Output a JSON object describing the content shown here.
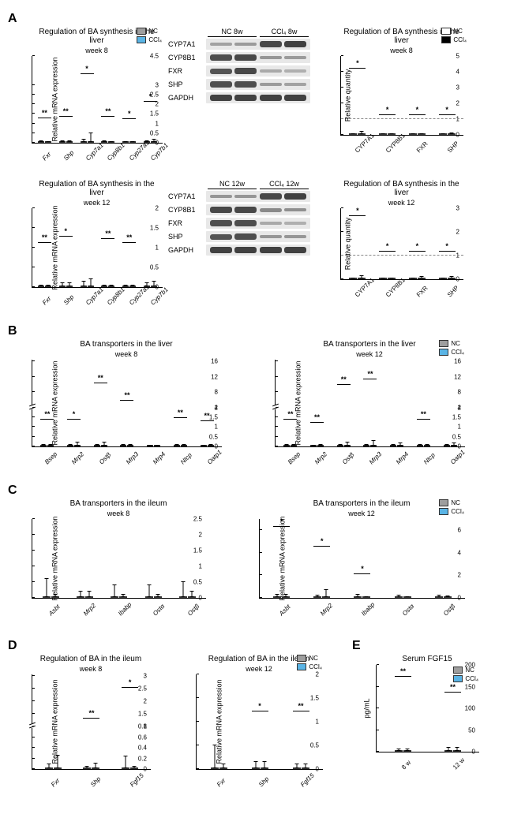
{
  "colors": {
    "nc_gray": "#9e9e9e",
    "ccl4_blue": "#5ab4e5",
    "nc_white": "#ffffff",
    "ccl4_black": "#000000",
    "text": "#000000",
    "axis": "#000000"
  },
  "fonts": {
    "title_pt": 10,
    "axis_pt": 9,
    "tick_pt": 8
  },
  "legend_labels": {
    "nc": "NC",
    "ccl4": "CCl₄"
  },
  "panelA": {
    "week8": {
      "mrna": {
        "type": "bar",
        "title": "Regulation of BA synthesis in the liver",
        "subtitle": "week 8",
        "ylabel": "Relative mRNA expression",
        "ylim": [
          0,
          4.5
        ],
        "yticks": [
          0,
          0.5,
          1.0,
          1.5,
          2.0,
          2.5,
          3.0,
          4.5
        ],
        "genes": [
          "Fxr",
          "Shp",
          "Cyp7a1",
          "Cyp8b1",
          "Cyp27a1",
          "Cyp7b1"
        ],
        "nc": [
          1.0,
          1.1,
          1.1,
          1.1,
          1.0,
          1.2
        ],
        "ccl4": [
          0.7,
          0.5,
          2.9,
          0.4,
          0.6,
          1.8
        ],
        "nc_err": [
          0.1,
          0.1,
          0.15,
          0.1,
          0.05,
          0.1
        ],
        "ccl4_err": [
          0.05,
          0.1,
          0.5,
          0.05,
          0.05,
          0.15
        ],
        "sig": [
          "**",
          "**",
          "*",
          "**",
          "*",
          "*"
        ]
      },
      "blot": {
        "header_left": "NC 8w",
        "header_right": "CCl₄ 8w",
        "rows": [
          {
            "label": "CYP7A1",
            "bands": [
              0.2,
              0.25,
              0.9,
              0.95
            ]
          },
          {
            "label": "CYP8B1",
            "bands": [
              0.85,
              0.9,
              0.3,
              0.25
            ]
          },
          {
            "label": "FXR",
            "bands": [
              0.8,
              0.9,
              0.15,
              0.1
            ]
          },
          {
            "label": "SHP",
            "bands": [
              0.85,
              0.85,
              0.25,
              0.2
            ]
          },
          {
            "label": "GAPDH",
            "bands": [
              0.95,
              0.95,
              0.95,
              0.95
            ]
          }
        ]
      },
      "protein": {
        "type": "bar",
        "title": "Regulation of BA synthesis in the liver",
        "subtitle": "week 8",
        "ylabel": "Relative quantity",
        "ylim": [
          0,
          5
        ],
        "yticks": [
          0,
          1,
          2,
          3,
          4,
          5
        ],
        "dashed_at": 1,
        "genes": [
          "CYP7A1",
          "CYP8B1",
          "FXR",
          "SHP"
        ],
        "nc": [
          1.0,
          1.0,
          1.0,
          1.0
        ],
        "ccl4": [
          3.8,
          0.3,
          0.2,
          0.4
        ],
        "nc_err": [
          0.05,
          0.05,
          0.05,
          0.05
        ],
        "ccl4_err": [
          0.2,
          0.05,
          0.05,
          0.1
        ],
        "sig": [
          "*",
          "*",
          "*",
          "*"
        ]
      }
    },
    "week12": {
      "mrna": {
        "type": "bar",
        "title": "Regulation of BA synthesis in the  liver",
        "subtitle": "week 12",
        "ylabel": "Relative mRNA expression",
        "ylim": [
          0,
          2.0
        ],
        "yticks": [
          0,
          0.5,
          1.0,
          1.5,
          2.0
        ],
        "genes": [
          "Fxr",
          "Shp",
          "Cyp7a1",
          "Cyp8b1",
          "Cyp27a1",
          "Cyp7b1"
        ],
        "nc": [
          1.0,
          1.1,
          1.1,
          1.1,
          1.0,
          1.1
        ],
        "ccl4": [
          0.55,
          0.7,
          1.4,
          0.3,
          0.35,
          1.5
        ],
        "nc_err": [
          0.05,
          0.1,
          0.15,
          0.05,
          0.05,
          0.1
        ],
        "ccl4_err": [
          0.05,
          0.1,
          0.2,
          0.05,
          0.05,
          0.15
        ],
        "sig": [
          "**",
          "*",
          "",
          "**",
          "**",
          ""
        ]
      },
      "blot": {
        "header_left": "NC 12w",
        "header_right": "CCl₄ 12w",
        "rows": [
          {
            "label": "CYP7A1",
            "bands": [
              0.3,
              0.3,
              0.9,
              0.95
            ]
          },
          {
            "label": "CYP8B1",
            "bands": [
              0.9,
              0.9,
              0.4,
              0.35
            ]
          },
          {
            "label": "FXR",
            "bands": [
              0.85,
              0.85,
              0.15,
              0.1
            ]
          },
          {
            "label": "SHP",
            "bands": [
              0.8,
              0.85,
              0.3,
              0.3
            ]
          },
          {
            "label": "GAPDH",
            "bands": [
              0.95,
              0.95,
              0.95,
              0.95
            ]
          }
        ]
      },
      "protein": {
        "type": "bar",
        "title": "Regulation of BA synthesis in the liver",
        "subtitle": "week 12",
        "ylabel": "Relative quantity",
        "ylim": [
          0,
          3
        ],
        "yticks": [
          0,
          1,
          2,
          3
        ],
        "dashed_at": 1,
        "genes": [
          "CYP7A1",
          "CYP8B1",
          "FXR",
          "SHP"
        ],
        "nc": [
          1.0,
          1.0,
          1.0,
          1.0
        ],
        "ccl4": [
          2.4,
          0.4,
          0.25,
          0.4
        ],
        "nc_err": [
          0.05,
          0.05,
          0.05,
          0.05
        ],
        "ccl4_err": [
          0.15,
          0.05,
          0.1,
          0.1
        ],
        "sig": [
          "*",
          "*",
          "*",
          "*"
        ]
      }
    }
  },
  "panelB": {
    "week8": {
      "type": "bar",
      "title": "BA transporters in the liver",
      "subtitle": "week 8",
      "ylabel": "Relative mRNA expression",
      "ylim": [
        0,
        16
      ],
      "yticks_low": [
        0,
        0.5,
        1.0,
        1.5,
        2.0
      ],
      "yticks_high": [
        4,
        8,
        12,
        16
      ],
      "break_at": 2.0,
      "genes": [
        "Bsep",
        "Mrp2",
        "Ostβ",
        "Mrp3",
        "Mrp4",
        "Ntcp",
        "Oatp1"
      ],
      "nc": [
        1.1,
        1.1,
        1.0,
        1.1,
        1.9,
        1.2,
        1.1
      ],
      "ccl4": [
        0.5,
        0.7,
        8.5,
        4.5,
        2.9,
        0.4,
        0.5
      ],
      "nc_err": [
        0.1,
        0.1,
        0.1,
        0.1,
        0.3,
        0.1,
        0.05
      ],
      "ccl4_err": [
        0.1,
        0.2,
        1.0,
        0.5,
        0.3,
        0.1,
        0.1
      ],
      "sig": [
        "**",
        "*",
        "**",
        "**",
        "",
        "**",
        "**"
      ]
    },
    "week12": {
      "type": "bar",
      "title": "BA transporters in the liver",
      "subtitle": "week 12",
      "ylabel": "Relative mRNA expression",
      "ylim": [
        0,
        16
      ],
      "yticks_low": [
        0,
        0.5,
        1.0,
        1.5,
        2.0
      ],
      "yticks_high": [
        4,
        8,
        12,
        16
      ],
      "break_at": 2.0,
      "genes": [
        "Bsep",
        "Mrp2",
        "Ostβ",
        "Mrp3",
        "Mrp4",
        "Ntcp",
        "Oatp1"
      ],
      "nc": [
        1.1,
        1.0,
        1.1,
        1.1,
        1.1,
        1.1,
        1.0
      ],
      "ccl4": [
        0.5,
        0.5,
        8.0,
        9.0,
        1.2,
        0.5,
        0.9
      ],
      "nc_err": [
        0.1,
        0.05,
        0.1,
        0.1,
        0.1,
        0.1,
        0.1
      ],
      "ccl4_err": [
        0.1,
        0.1,
        1.0,
        1.5,
        0.15,
        0.1,
        0.15
      ],
      "sig": [
        "**",
        "**",
        "**",
        "**",
        "",
        "**",
        ""
      ]
    }
  },
  "panelC": {
    "week8": {
      "type": "bar",
      "title": "BA transporters in the ileum",
      "subtitle": "week 8",
      "ylabel": "Relative mRNA expression",
      "ylim": [
        0,
        2.5
      ],
      "yticks": [
        0,
        0.5,
        1.0,
        1.5,
        2.0,
        2.5
      ],
      "genes": [
        "Asbt",
        "Mrp2",
        "Ibabp",
        "Ostα",
        "Ostβ"
      ],
      "nc": [
        1.25,
        1.05,
        1.1,
        1.25,
        1.45
      ],
      "ccl4": [
        0.15,
        1.4,
        0.35,
        0.7,
        0.75
      ],
      "nc_err": [
        0.6,
        0.2,
        0.4,
        0.4,
        0.5
      ],
      "ccl4_err": [
        0.1,
        0.2,
        0.1,
        0.1,
        0.2
      ],
      "sig": [
        "",
        "",
        "",
        "",
        ""
      ]
    },
    "week12": {
      "type": "bar",
      "title": "BA transporters in the ileum",
      "subtitle": "week 12",
      "ylabel": "Relative mRNA expression",
      "ylim": [
        0,
        7
      ],
      "yticks": [
        0,
        2,
        4,
        6
      ],
      "genes": [
        "Asbt",
        "Mrp2",
        "Ibabp",
        "Ostα",
        "Ostβ"
      ],
      "nc": [
        1.25,
        1.2,
        1.5,
        1.0,
        1.2
      ],
      "ccl4": [
        5.7,
        3.6,
        0.2,
        0.5,
        0.9
      ],
      "nc_err": [
        0.3,
        0.2,
        0.3,
        0.2,
        0.2
      ],
      "ccl4_err": [
        0.3,
        0.7,
        0.05,
        0.1,
        0.15
      ],
      "sig": [
        "*",
        "*",
        "*",
        "",
        ""
      ]
    }
  },
  "panelD": {
    "week8": {
      "type": "bar",
      "title": "Regulation of BA in the ileum",
      "subtitle": "week 8",
      "ylabel": "Relative mRNA expression",
      "ylim": [
        0,
        3
      ],
      "yticks_low": [
        0,
        0.2,
        0.4,
        0.6,
        0.8
      ],
      "yticks_high": [
        1.0,
        1.5,
        2.0,
        2.5,
        3.0
      ],
      "break_at": 0.8,
      "genes": [
        "Fxr",
        "Shp",
        "Fgf15"
      ],
      "nc": [
        1.2,
        1.1,
        1.9
      ],
      "ccl4": [
        1.45,
        0.38,
        0.1
      ],
      "nc_err": [
        0.2,
        0.1,
        0.5
      ],
      "ccl4_err": [
        0.55,
        0.1,
        0.05
      ],
      "sig": [
        "",
        "**",
        "*"
      ]
    },
    "week12": {
      "type": "bar",
      "title": "Regulation of BA in the ileum",
      "subtitle": "week 12",
      "ylabel": "Relative mRNA expression",
      "ylim": [
        0,
        2.0
      ],
      "yticks": [
        0,
        0.5,
        1.0,
        1.5,
        2.0
      ],
      "genes": [
        "Fxr",
        "Shp",
        "Fgf15"
      ],
      "nc": [
        1.4,
        1.0,
        1.05
      ],
      "ccl4": [
        0.7,
        0.25,
        0.2
      ],
      "nc_err": [
        0.5,
        0.15,
        0.1
      ],
      "ccl4_err": [
        0.1,
        0.15,
        0.1
      ],
      "sig": [
        "",
        "*",
        "**"
      ]
    }
  },
  "panelE": {
    "type": "bar",
    "title": "Serum FGF15",
    "ylabel": "pg/mL",
    "ylim": [
      0,
      200
    ],
    "yticks": [
      0,
      50,
      100,
      150,
      200
    ],
    "genes": [
      "8 w",
      "12 w"
    ],
    "nc": [
      160,
      120
    ],
    "ccl4": [
      140,
      80
    ],
    "nc_err": [
      5,
      10
    ],
    "ccl4_err": [
      5,
      10
    ],
    "sig": [
      "**",
      "**"
    ]
  }
}
